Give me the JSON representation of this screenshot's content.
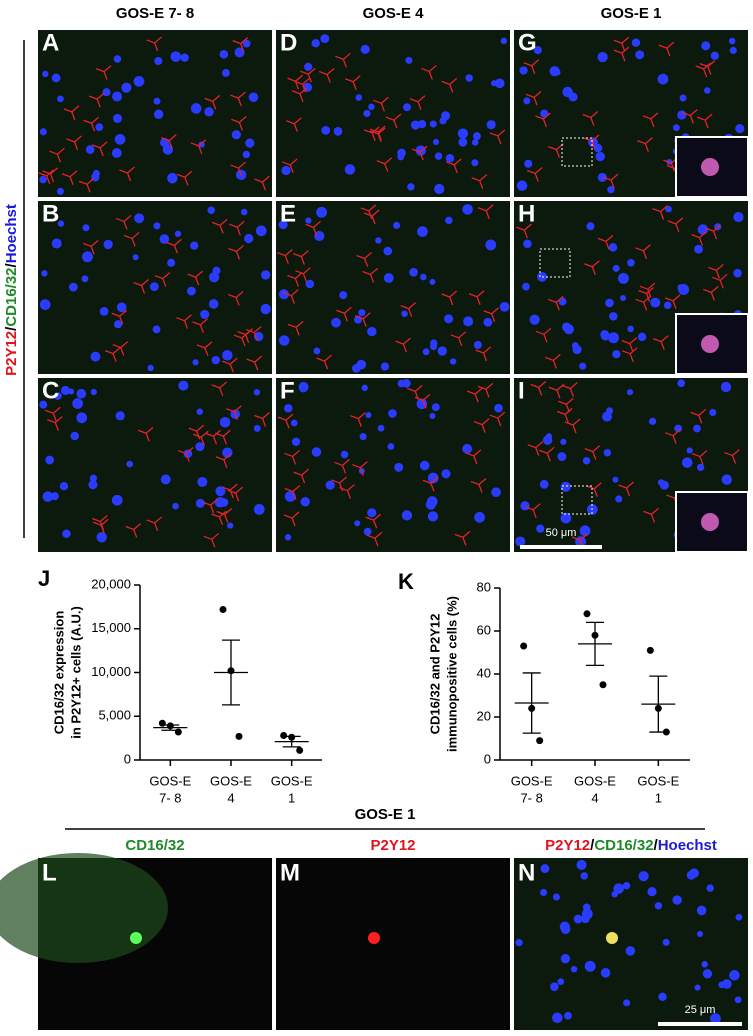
{
  "column_headers": [
    "GOS-E 7- 8",
    "GOS-E 4",
    "GOS-E 1"
  ],
  "side_label": [
    "P2Y12",
    "/",
    "CD16/32",
    "/",
    "Hoechst"
  ],
  "panels": {
    "letters": [
      "A",
      "B",
      "C",
      "D",
      "E",
      "F",
      "G",
      "H",
      "I"
    ],
    "scale_bar": "50 μm"
  },
  "bottom": {
    "header": "GOS-E 1",
    "channel_labels": [
      "CD16/32",
      "P2Y12"
    ],
    "merged_label": [
      "P2Y12",
      "/",
      "CD16/32",
      "/",
      "Hoechst"
    ],
    "letters": [
      "L",
      "M",
      "N"
    ],
    "scale_bar": "25 μm"
  },
  "chart_data": [
    {
      "type": "dot",
      "letter": "J",
      "y_label": [
        "CD16/32 expression",
        "in P2Y12+ cells (A.U.)"
      ],
      "categories": [
        [
          "GOS-E",
          "7- 8"
        ],
        [
          "GOS-E",
          "4"
        ],
        [
          "GOS-E",
          "1"
        ]
      ],
      "points": [
        [
          4200,
          3900,
          3200
        ],
        [
          17200,
          10200,
          2700
        ],
        [
          2800,
          2600,
          1100
        ]
      ],
      "means": [
        3700,
        10000,
        2100
      ],
      "errors": [
        300,
        3700,
        600
      ],
      "ylim": [
        0,
        20000
      ],
      "yticks": [
        0,
        {
          "value": 5000,
          "label": "5,000"
        },
        {
          "value": 10000,
          "label": "10,000"
        },
        {
          "value": 15000,
          "label": "15,000"
        },
        {
          "value": 20000,
          "label": "20,000"
        }
      ]
    },
    {
      "type": "dot",
      "letter": "K",
      "y_label": [
        "CD16/32 and P2Y12",
        "immunopositive cells  (%)"
      ],
      "categories": [
        [
          "GOS-E",
          "7- 8"
        ],
        [
          "GOS-E",
          "4"
        ],
        [
          "GOS-E",
          "1"
        ]
      ],
      "points": [
        [
          53,
          24,
          9
        ],
        [
          68,
          58,
          35
        ],
        [
          51,
          24,
          13
        ]
      ],
      "means": [
        26.5,
        54,
        26
      ],
      "errors": [
        14,
        10,
        13
      ],
      "ylim": [
        0,
        80
      ],
      "yticks": [
        0,
        20,
        40,
        60,
        80
      ]
    }
  ]
}
